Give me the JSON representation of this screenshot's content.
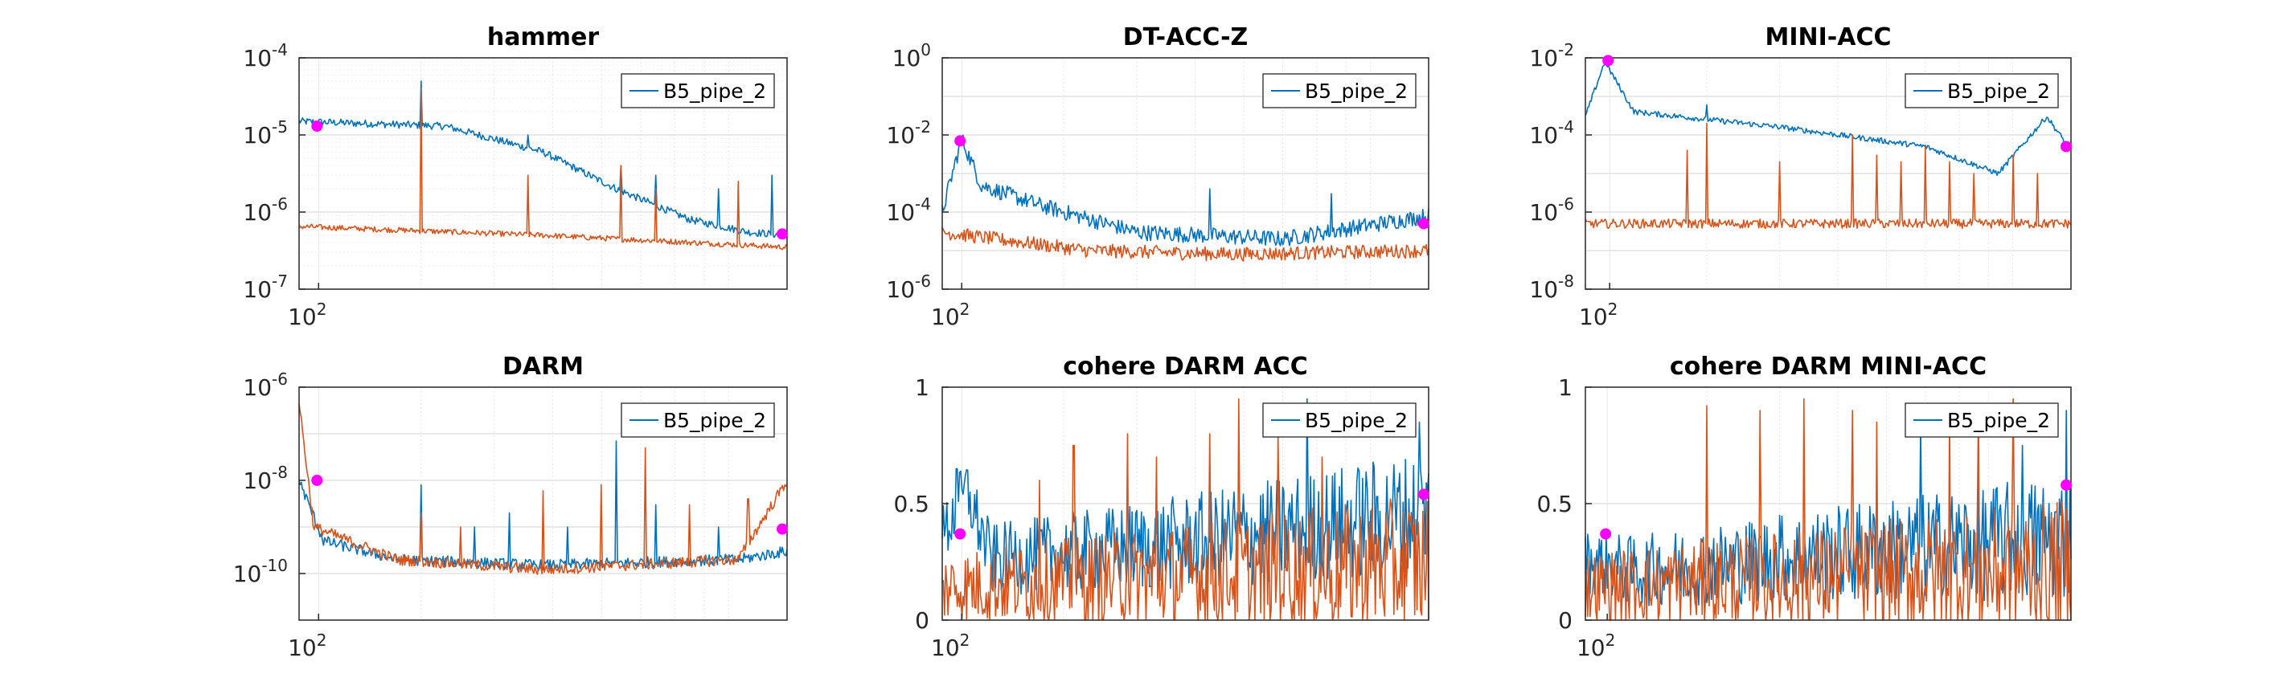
{
  "colors": {
    "series1": "#0072BD",
    "series2": "#D95319",
    "marker": "#FF00FF",
    "grid": "#DCDCDC",
    "axis": "#262626"
  },
  "chart_data": [
    {
      "title": "hammer",
      "type": "line",
      "yscale": "log",
      "xscale": "log",
      "ylim": [
        1e-07,
        0.0001
      ],
      "ytick_exponents": [
        -7,
        -6,
        -5,
        -4
      ],
      "xtick_label": "10",
      "xtick_exp": "2",
      "legend": "B5_pipe_2",
      "legend_position": "top-right",
      "markers": [
        {
          "x": "left",
          "y": 1.3e-05
        },
        {
          "x": "right",
          "y": 5.2e-07
        }
      ],
      "series": [
        {
          "name": "B5_pipe_2",
          "color": "#0072BD",
          "shape": [
            [
              0,
              1.5e-05
            ],
            [
              0.3,
              1.3e-05
            ],
            [
              0.5,
              6e-06
            ],
            [
              0.65,
              2e-06
            ],
            [
              0.8,
              8e-07
            ],
            [
              0.92,
              5.5e-07
            ],
            [
              1,
              5e-07
            ]
          ],
          "noise": 0.08,
          "spikes": [
            [
              0.25,
              5e-05
            ],
            [
              0.47,
              1e-05
            ],
            [
              0.66,
              4e-06
            ],
            [
              0.73,
              3e-06
            ],
            [
              0.86,
              2e-06
            ],
            [
              0.97,
              3e-06
            ]
          ]
        },
        {
          "shape": [
            [
              0,
              6.5e-07
            ],
            [
              0.5,
              5e-07
            ],
            [
              1,
              3.5e-07
            ]
          ],
          "noise": 0.06,
          "spikes": [
            [
              0.25,
              4e-05
            ],
            [
              0.47,
              3e-06
            ],
            [
              0.66,
              4e-06
            ],
            [
              0.73,
              2e-06
            ],
            [
              0.9,
              2.5e-06
            ]
          ]
        }
      ]
    },
    {
      "title": "DT-ACC-Z",
      "type": "line",
      "yscale": "log",
      "xscale": "log",
      "ylim": [
        1e-06,
        1
      ],
      "ytick_exponents": [
        -6,
        -4,
        -2,
        0
      ],
      "xtick_label": "10",
      "xtick_exp": "2",
      "legend": "B5_pipe_2",
      "legend_position": "top-right",
      "markers": [
        {
          "x": "left",
          "y": 0.007
        },
        {
          "x": "right",
          "y": 5e-05
        }
      ],
      "series": [
        {
          "name": "B5_pipe_2",
          "color": "#0072BD",
          "shape": [
            [
              0,
              0.0001
            ],
            [
              0.04,
              0.008
            ],
            [
              0.08,
              0.0005
            ],
            [
              0.2,
              0.00015
            ],
            [
              0.4,
              3e-05
            ],
            [
              0.7,
              2e-05
            ],
            [
              1,
              8e-05
            ]
          ],
          "noise": 0.35,
          "spikes": [
            [
              0.55,
              0.0004
            ],
            [
              0.8,
              0.0003
            ]
          ]
        },
        {
          "shape": [
            [
              0,
              3e-05
            ],
            [
              0.3,
              1e-05
            ],
            [
              0.6,
              8e-06
            ],
            [
              1,
              1e-05
            ]
          ],
          "noise": 0.3,
          "spikes": []
        }
      ]
    },
    {
      "title": "MINI-ACC",
      "type": "line",
      "yscale": "log",
      "xscale": "log",
      "ylim": [
        1e-08,
        0.01
      ],
      "ytick_exponents": [
        -8,
        -6,
        -4,
        -2
      ],
      "xtick_label": "10",
      "xtick_exp": "2",
      "legend": "B5_pipe_2",
      "legend_position": "top-right",
      "markers": [
        {
          "x": "left",
          "y": 0.0085
        },
        {
          "x": "right",
          "y": 5e-05
        }
      ],
      "series": [
        {
          "name": "B5_pipe_2",
          "color": "#0072BD",
          "shape": [
            [
              0,
              0.0003
            ],
            [
              0.04,
              0.008
            ],
            [
              0.1,
              0.0004
            ],
            [
              0.4,
              0.00016
            ],
            [
              0.7,
              5e-05
            ],
            [
              0.85,
              1e-05
            ],
            [
              0.95,
              0.0003
            ],
            [
              1,
              4e-05
            ]
          ],
          "noise": 0.12,
          "spikes": [
            [
              0.25,
              0.0006
            ]
          ]
        },
        {
          "shape": [
            [
              0,
              5e-07
            ],
            [
              1,
              5e-07
            ]
          ],
          "noise": 0.2,
          "spikes": [
            [
              0.25,
              0.0002
            ],
            [
              0.21,
              4e-05
            ],
            [
              0.4,
              2e-05
            ],
            [
              0.55,
              0.0001
            ],
            [
              0.6,
              3e-05
            ],
            [
              0.65,
              2e-05
            ],
            [
              0.7,
              5e-05
            ],
            [
              0.75,
              2e-05
            ],
            [
              0.8,
              1e-05
            ],
            [
              0.88,
              3e-05
            ],
            [
              0.93,
              1e-05
            ]
          ]
        }
      ]
    },
    {
      "title": "DARM",
      "type": "line",
      "yscale": "log",
      "xscale": "log",
      "ylim": [
        1e-11,
        1e-06
      ],
      "ytick_exponents": [
        -10,
        -8,
        -6
      ],
      "xtick_label": "10",
      "xtick_exp": "2",
      "legend": "B5_pipe_2",
      "legend_position": "top-right",
      "markers": [
        {
          "x": "left",
          "y": 1e-08
        },
        {
          "x": "right",
          "y": 9e-10
        }
      ],
      "series": [
        {
          "name": "B5_pipe_2",
          "color": "#0072BD",
          "shape": [
            [
              0,
              1e-08
            ],
            [
              0.05,
              5e-10
            ],
            [
              0.2,
              2e-10
            ],
            [
              0.5,
              1.5e-10
            ],
            [
              0.9,
              2e-10
            ],
            [
              1,
              3e-10
            ]
          ],
          "noise": 0.2,
          "spikes": [
            [
              0.25,
              8e-09
            ],
            [
              0.36,
              1e-09
            ],
            [
              0.43,
              2e-09
            ],
            [
              0.55,
              1e-09
            ],
            [
              0.65,
              7e-08
            ],
            [
              0.73,
              3e-09
            ],
            [
              0.86,
              1e-09
            ]
          ]
        },
        {
          "shape": [
            [
              0,
              5e-07
            ],
            [
              0.03,
              1e-09
            ],
            [
              0.2,
              2e-10
            ],
            [
              0.5,
              1.2e-10
            ],
            [
              0.9,
              2e-10
            ],
            [
              1,
              1e-08
            ]
          ],
          "noise": 0.2,
          "spikes": [
            [
              0.25,
              2e-09
            ],
            [
              0.33,
              1e-09
            ],
            [
              0.5,
              6e-09
            ],
            [
              0.62,
              8e-09
            ],
            [
              0.71,
              5e-08
            ],
            [
              0.8,
              3e-09
            ],
            [
              0.92,
              4e-09
            ]
          ]
        }
      ]
    },
    {
      "title": "cohere DARM ACC",
      "type": "line",
      "yscale": "linear",
      "xscale": "log",
      "ylim": [
        0,
        1
      ],
      "yticks": [
        "0",
        "0.5",
        "1"
      ],
      "xtick_label": "10",
      "xtick_exp": "2",
      "legend": "B5_pipe_2",
      "legend_position": "top-right",
      "markers": [
        {
          "x": "left",
          "y": 0.37
        },
        {
          "x": "right",
          "y": 0.54
        }
      ],
      "series": [
        {
          "name": "B5_pipe_2",
          "color": "#0072BD",
          "shape": [
            [
              0,
              0.3
            ],
            [
              0.05,
              0.5
            ],
            [
              0.1,
              0.2
            ],
            [
              0.5,
              0.25
            ],
            [
              1,
              0.35
            ]
          ],
          "noise": 0.55,
          "spikes": [
            [
              0.03,
              0.65
            ],
            [
              0.6,
              0.55
            ],
            [
              0.75,
              0.95
            ],
            [
              0.98,
              0.85
            ]
          ]
        },
        {
          "shape": [
            [
              0,
              0.08
            ],
            [
              1,
              0.12
            ]
          ],
          "noise": 0.6,
          "spikes": [
            [
              0.2,
              0.6
            ],
            [
              0.27,
              0.75
            ],
            [
              0.38,
              0.8
            ],
            [
              0.44,
              0.7
            ],
            [
              0.55,
              0.8
            ],
            [
              0.61,
              0.95
            ],
            [
              0.69,
              0.8
            ],
            [
              0.78,
              0.7
            ]
          ]
        }
      ]
    },
    {
      "title": "cohere DARM MINI-ACC",
      "type": "line",
      "yscale": "linear",
      "xscale": "log",
      "ylim": [
        0,
        1
      ],
      "yticks": [
        "0",
        "0.5",
        "1"
      ],
      "xtick_label": "10",
      "xtick_exp": "2",
      "legend": "B5_pipe_2",
      "legend_position": "top-right",
      "markers": [
        {
          "x": "left",
          "y": 0.37
        },
        {
          "x": "right",
          "y": 0.58
        }
      ],
      "series": [
        {
          "name": "B5_pipe_2",
          "color": "#0072BD",
          "shape": [
            [
              0,
              0.2
            ],
            [
              0.1,
              0.15
            ],
            [
              0.5,
              0.2
            ],
            [
              1,
              0.25
            ]
          ],
          "noise": 0.55,
          "spikes": [
            [
              0.4,
              0.45
            ],
            [
              0.69,
              0.85
            ],
            [
              0.9,
              0.75
            ],
            [
              0.99,
              0.9
            ]
          ]
        },
        {
          "shape": [
            [
              0,
              0.08
            ],
            [
              1,
              0.1
            ]
          ],
          "noise": 0.6,
          "spikes": [
            [
              0.25,
              0.92
            ],
            [
              0.36,
              0.9
            ],
            [
              0.45,
              0.95
            ],
            [
              0.55,
              0.9
            ],
            [
              0.6,
              0.85
            ],
            [
              0.75,
              0.9
            ],
            [
              0.81,
              0.92
            ],
            [
              0.88,
              0.95
            ]
          ]
        }
      ]
    }
  ]
}
